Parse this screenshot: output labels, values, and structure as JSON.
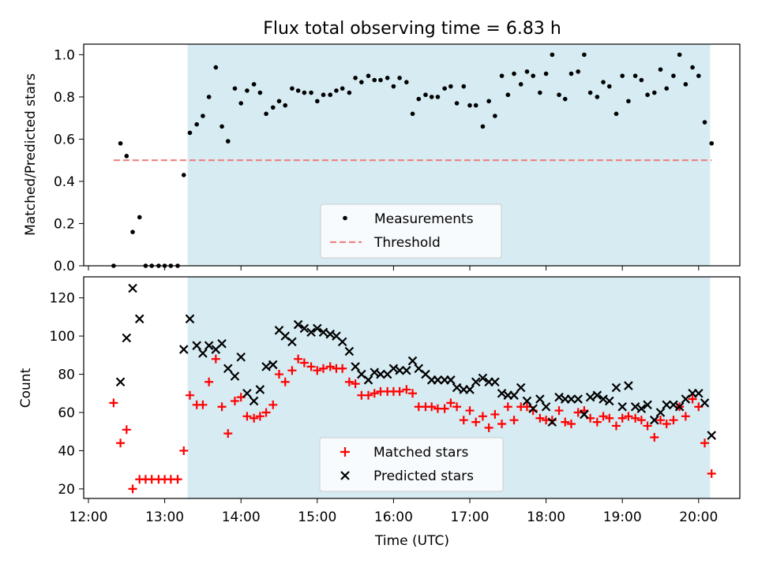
{
  "figure": {
    "title": "Flux total observing time = 6.83 h",
    "xlabel": "Time (UTC)",
    "xticks": [
      "12:00",
      "13:00",
      "14:00",
      "15:00",
      "16:00",
      "17:00",
      "18:00",
      "19:00",
      "20:00"
    ],
    "shaded_region": {
      "start": "13:18",
      "end": "20:09",
      "color": "#add8e6"
    }
  },
  "chart_data": [
    {
      "type": "scatter",
      "x_unit": "hours UTC",
      "ylabel": "Matched/Predicted stars",
      "ylim": [
        0,
        1.05
      ],
      "yticks": [
        "0.0",
        "0.2",
        "0.4",
        "0.6",
        "0.8",
        "1.0"
      ],
      "legend": {
        "placement": "lower center",
        "entries": [
          {
            "label": "Measurements"
          },
          {
            "label": "Threshold"
          }
        ]
      },
      "series": [
        {
          "name": "Measurements",
          "color": "#000000",
          "marker": "dot",
          "x": [
            12.33,
            12.42,
            12.5,
            12.58,
            12.67,
            12.75,
            12.83,
            12.92,
            13.0,
            13.08,
            13.17,
            13.25,
            13.33,
            13.42,
            13.5,
            13.58,
            13.67,
            13.75,
            13.83,
            13.92,
            14.0,
            14.08,
            14.17,
            14.25,
            14.33,
            14.42,
            14.5,
            14.58,
            14.67,
            14.75,
            14.83,
            14.92,
            15.0,
            15.08,
            15.17,
            15.25,
            15.33,
            15.42,
            15.5,
            15.58,
            15.67,
            15.75,
            15.83,
            15.92,
            16.0,
            16.08,
            16.17,
            16.25,
            16.33,
            16.42,
            16.5,
            16.58,
            16.67,
            16.75,
            16.83,
            16.92,
            17.0,
            17.08,
            17.17,
            17.25,
            17.33,
            17.42,
            17.5,
            17.58,
            17.67,
            17.75,
            17.83,
            17.92,
            18.0,
            18.08,
            18.17,
            18.25,
            18.33,
            18.42,
            18.5,
            18.58,
            18.67,
            18.75,
            18.83,
            18.92,
            19.0,
            19.08,
            19.17,
            19.25,
            19.33,
            19.42,
            19.5,
            19.58,
            19.67,
            19.75,
            19.83,
            19.92,
            20.0,
            20.08,
            20.17
          ],
          "y": [
            0.0,
            0.58,
            0.52,
            0.16,
            0.23,
            0.0,
            0.0,
            0.0,
            0.0,
            0.0,
            0.0,
            0.43,
            0.63,
            0.67,
            0.71,
            0.8,
            0.94,
            0.66,
            0.59,
            0.84,
            0.77,
            0.83,
            0.86,
            0.82,
            0.72,
            0.75,
            0.78,
            0.76,
            0.84,
            0.83,
            0.82,
            0.82,
            0.78,
            0.81,
            0.81,
            0.83,
            0.84,
            0.82,
            0.89,
            0.87,
            0.9,
            0.88,
            0.88,
            0.89,
            0.85,
            0.89,
            0.87,
            0.72,
            0.79,
            0.81,
            0.8,
            0.8,
            0.84,
            0.85,
            0.77,
            0.85,
            0.76,
            0.76,
            0.66,
            0.78,
            0.71,
            0.9,
            0.81,
            0.91,
            0.86,
            0.92,
            0.9,
            0.82,
            0.91,
            1.0,
            0.81,
            0.79,
            0.91,
            0.92,
            1.0,
            0.82,
            0.8,
            0.87,
            0.85,
            0.72,
            0.9,
            0.78,
            0.9,
            0.88,
            0.81,
            0.82,
            0.93,
            0.84,
            0.9,
            1.0,
            0.86,
            0.94,
            0.9,
            0.68,
            0.58
          ]
        },
        {
          "name": "Threshold",
          "color": "#f08080",
          "style": "dashed",
          "x": [
            12.33,
            20.17
          ],
          "y": [
            0.5,
            0.5
          ]
        }
      ]
    },
    {
      "type": "scatter",
      "x_unit": "hours UTC",
      "ylabel": "Count",
      "ylim": [
        15,
        131
      ],
      "yticks": [
        "20",
        "40",
        "60",
        "80",
        "100",
        "120"
      ],
      "legend": {
        "placement": "lower center",
        "entries": [
          {
            "label": "Matched stars"
          },
          {
            "label": "Predicted stars"
          }
        ]
      },
      "series": [
        {
          "name": "Matched stars",
          "color": "#ff0000",
          "marker": "plus",
          "x": [
            12.33,
            12.42,
            12.5,
            12.58,
            12.67,
            12.75,
            12.83,
            12.92,
            13.0,
            13.08,
            13.17,
            13.25,
            13.33,
            13.42,
            13.5,
            13.58,
            13.67,
            13.75,
            13.83,
            13.92,
            14.0,
            14.08,
            14.17,
            14.25,
            14.33,
            14.42,
            14.5,
            14.58,
            14.67,
            14.75,
            14.83,
            14.92,
            15.0,
            15.08,
            15.17,
            15.25,
            15.33,
            15.42,
            15.5,
            15.58,
            15.67,
            15.75,
            15.83,
            15.92,
            16.0,
            16.08,
            16.17,
            16.25,
            16.33,
            16.42,
            16.5,
            16.58,
            16.67,
            16.75,
            16.83,
            16.92,
            17.0,
            17.08,
            17.17,
            17.25,
            17.33,
            17.42,
            17.5,
            17.58,
            17.67,
            17.75,
            17.83,
            17.92,
            18.0,
            18.08,
            18.17,
            18.25,
            18.33,
            18.42,
            18.5,
            18.58,
            18.67,
            18.75,
            18.83,
            18.92,
            19.0,
            19.08,
            19.17,
            19.25,
            19.33,
            19.42,
            19.5,
            19.58,
            19.67,
            19.75,
            19.83,
            19.92,
            20.0,
            20.08,
            20.17
          ],
          "y": [
            65,
            44,
            51,
            20,
            25,
            25,
            25,
            25,
            25,
            25,
            25,
            40,
            69,
            64,
            64,
            76,
            88,
            63,
            49,
            66,
            68,
            58,
            57,
            58,
            60,
            64,
            80,
            76,
            82,
            88,
            86,
            84,
            82,
            83,
            84,
            83,
            83,
            76,
            75,
            69,
            69,
            70,
            71,
            71,
            71,
            71,
            72,
            70,
            63,
            63,
            63,
            62,
            62,
            65,
            63,
            56,
            61,
            55,
            58,
            52,
            59,
            54,
            63,
            56,
            63,
            63,
            61,
            57,
            56,
            56,
            61,
            55,
            54,
            60,
            61,
            57,
            55,
            58,
            57,
            53,
            57,
            58,
            57,
            56,
            53,
            47,
            56,
            54,
            56,
            63,
            58,
            67,
            63,
            44,
            28
          ]
        },
        {
          "name": "Predicted stars",
          "color": "#000000",
          "marker": "x",
          "x": [
            12.42,
            12.5,
            12.58,
            12.67,
            13.25,
            13.33,
            13.42,
            13.5,
            13.58,
            13.67,
            13.75,
            13.83,
            13.92,
            14.0,
            14.08,
            14.17,
            14.25,
            14.33,
            14.42,
            14.5,
            14.58,
            14.67,
            14.75,
            14.83,
            14.92,
            15.0,
            15.08,
            15.17,
            15.25,
            15.33,
            15.42,
            15.5,
            15.58,
            15.67,
            15.75,
            15.83,
            15.92,
            16.0,
            16.08,
            16.17,
            16.25,
            16.33,
            16.42,
            16.5,
            16.58,
            16.67,
            16.75,
            16.83,
            16.92,
            17.0,
            17.08,
            17.17,
            17.25,
            17.33,
            17.42,
            17.5,
            17.58,
            17.67,
            17.75,
            17.83,
            17.92,
            18.0,
            18.08,
            18.17,
            18.25,
            18.33,
            18.42,
            18.5,
            18.58,
            18.67,
            18.75,
            18.83,
            18.92,
            19.0,
            19.08,
            19.17,
            19.25,
            19.33,
            19.42,
            19.5,
            19.58,
            19.67,
            19.75,
            19.83,
            19.92,
            20.0,
            20.08,
            20.17
          ],
          "y": [
            76,
            99,
            125,
            109,
            93,
            109,
            95,
            91,
            95,
            93,
            96,
            83,
            79,
            89,
            70,
            66,
            72,
            84,
            85,
            103,
            100,
            97,
            106,
            104,
            102,
            104,
            102,
            101,
            100,
            97,
            92,
            84,
            80,
            77,
            81,
            80,
            80,
            83,
            82,
            82,
            87,
            83,
            80,
            77,
            77,
            77,
            77,
            73,
            72,
            72,
            76,
            78,
            76,
            76,
            70,
            69,
            69,
            73,
            66,
            62,
            67,
            63,
            55,
            68,
            67,
            67,
            67,
            59,
            68,
            69,
            67,
            66,
            73,
            63,
            74,
            63,
            62,
            64,
            56,
            60,
            64,
            64,
            63,
            67,
            70,
            70,
            65,
            48
          ]
        }
      ]
    }
  ]
}
